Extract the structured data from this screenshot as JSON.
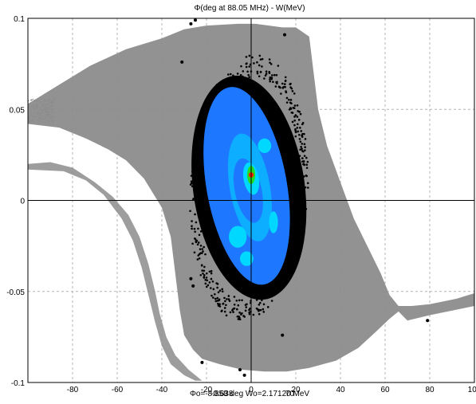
{
  "chart_data": {
    "type": "scatter",
    "title": "Φ(deg at 88.05 MHz) - W(MeV)",
    "footer": "Φo=-8.858 deg  Wo=2.17120 MeV",
    "footer_overlap": "-0.638",
    "footer_overlap2": "70",
    "xlim": [
      -100,
      100
    ],
    "ylim": [
      -0.1,
      0.1
    ],
    "x_ticks": [
      -80,
      -60,
      -40,
      -20,
      0,
      20,
      40,
      60,
      80,
      100
    ],
    "x_tick_labels": [
      "-80",
      "-60",
      "-40",
      "-20",
      "0",
      "20",
      "40",
      "60",
      "80",
      "100"
    ],
    "y_ticks": [
      -0.1,
      -0.05,
      0,
      0.05,
      0.1
    ],
    "y_tick_labels": [
      "-0.1",
      "-0.05",
      "0",
      "0.05",
      "0.1"
    ],
    "grid": true,
    "colors": {
      "separatrix": "#8c8c8c",
      "beam_halo": "#000000",
      "density_low": "#1e78ff",
      "density_mid": "#00d8ff",
      "density_high": "#22dd22",
      "density_peak": "#ff2200",
      "grid": "#b4b4b4"
    },
    "outliers": [
      {
        "x": -25,
        "y": 0.099
      },
      {
        "x": -27,
        "y": 0.097
      },
      {
        "x": 15,
        "y": 0.091
      },
      {
        "x": -31,
        "y": 0.076
      },
      {
        "x": 79,
        "y": -0.066
      },
      {
        "x": -27,
        "y": -0.043
      },
      {
        "x": -26,
        "y": -0.047
      },
      {
        "x": -22,
        "y": -0.089
      },
      {
        "x": -5,
        "y": -0.093
      },
      {
        "x": -3,
        "y": -0.096
      },
      {
        "x": 14,
        "y": -0.074
      }
    ]
  }
}
